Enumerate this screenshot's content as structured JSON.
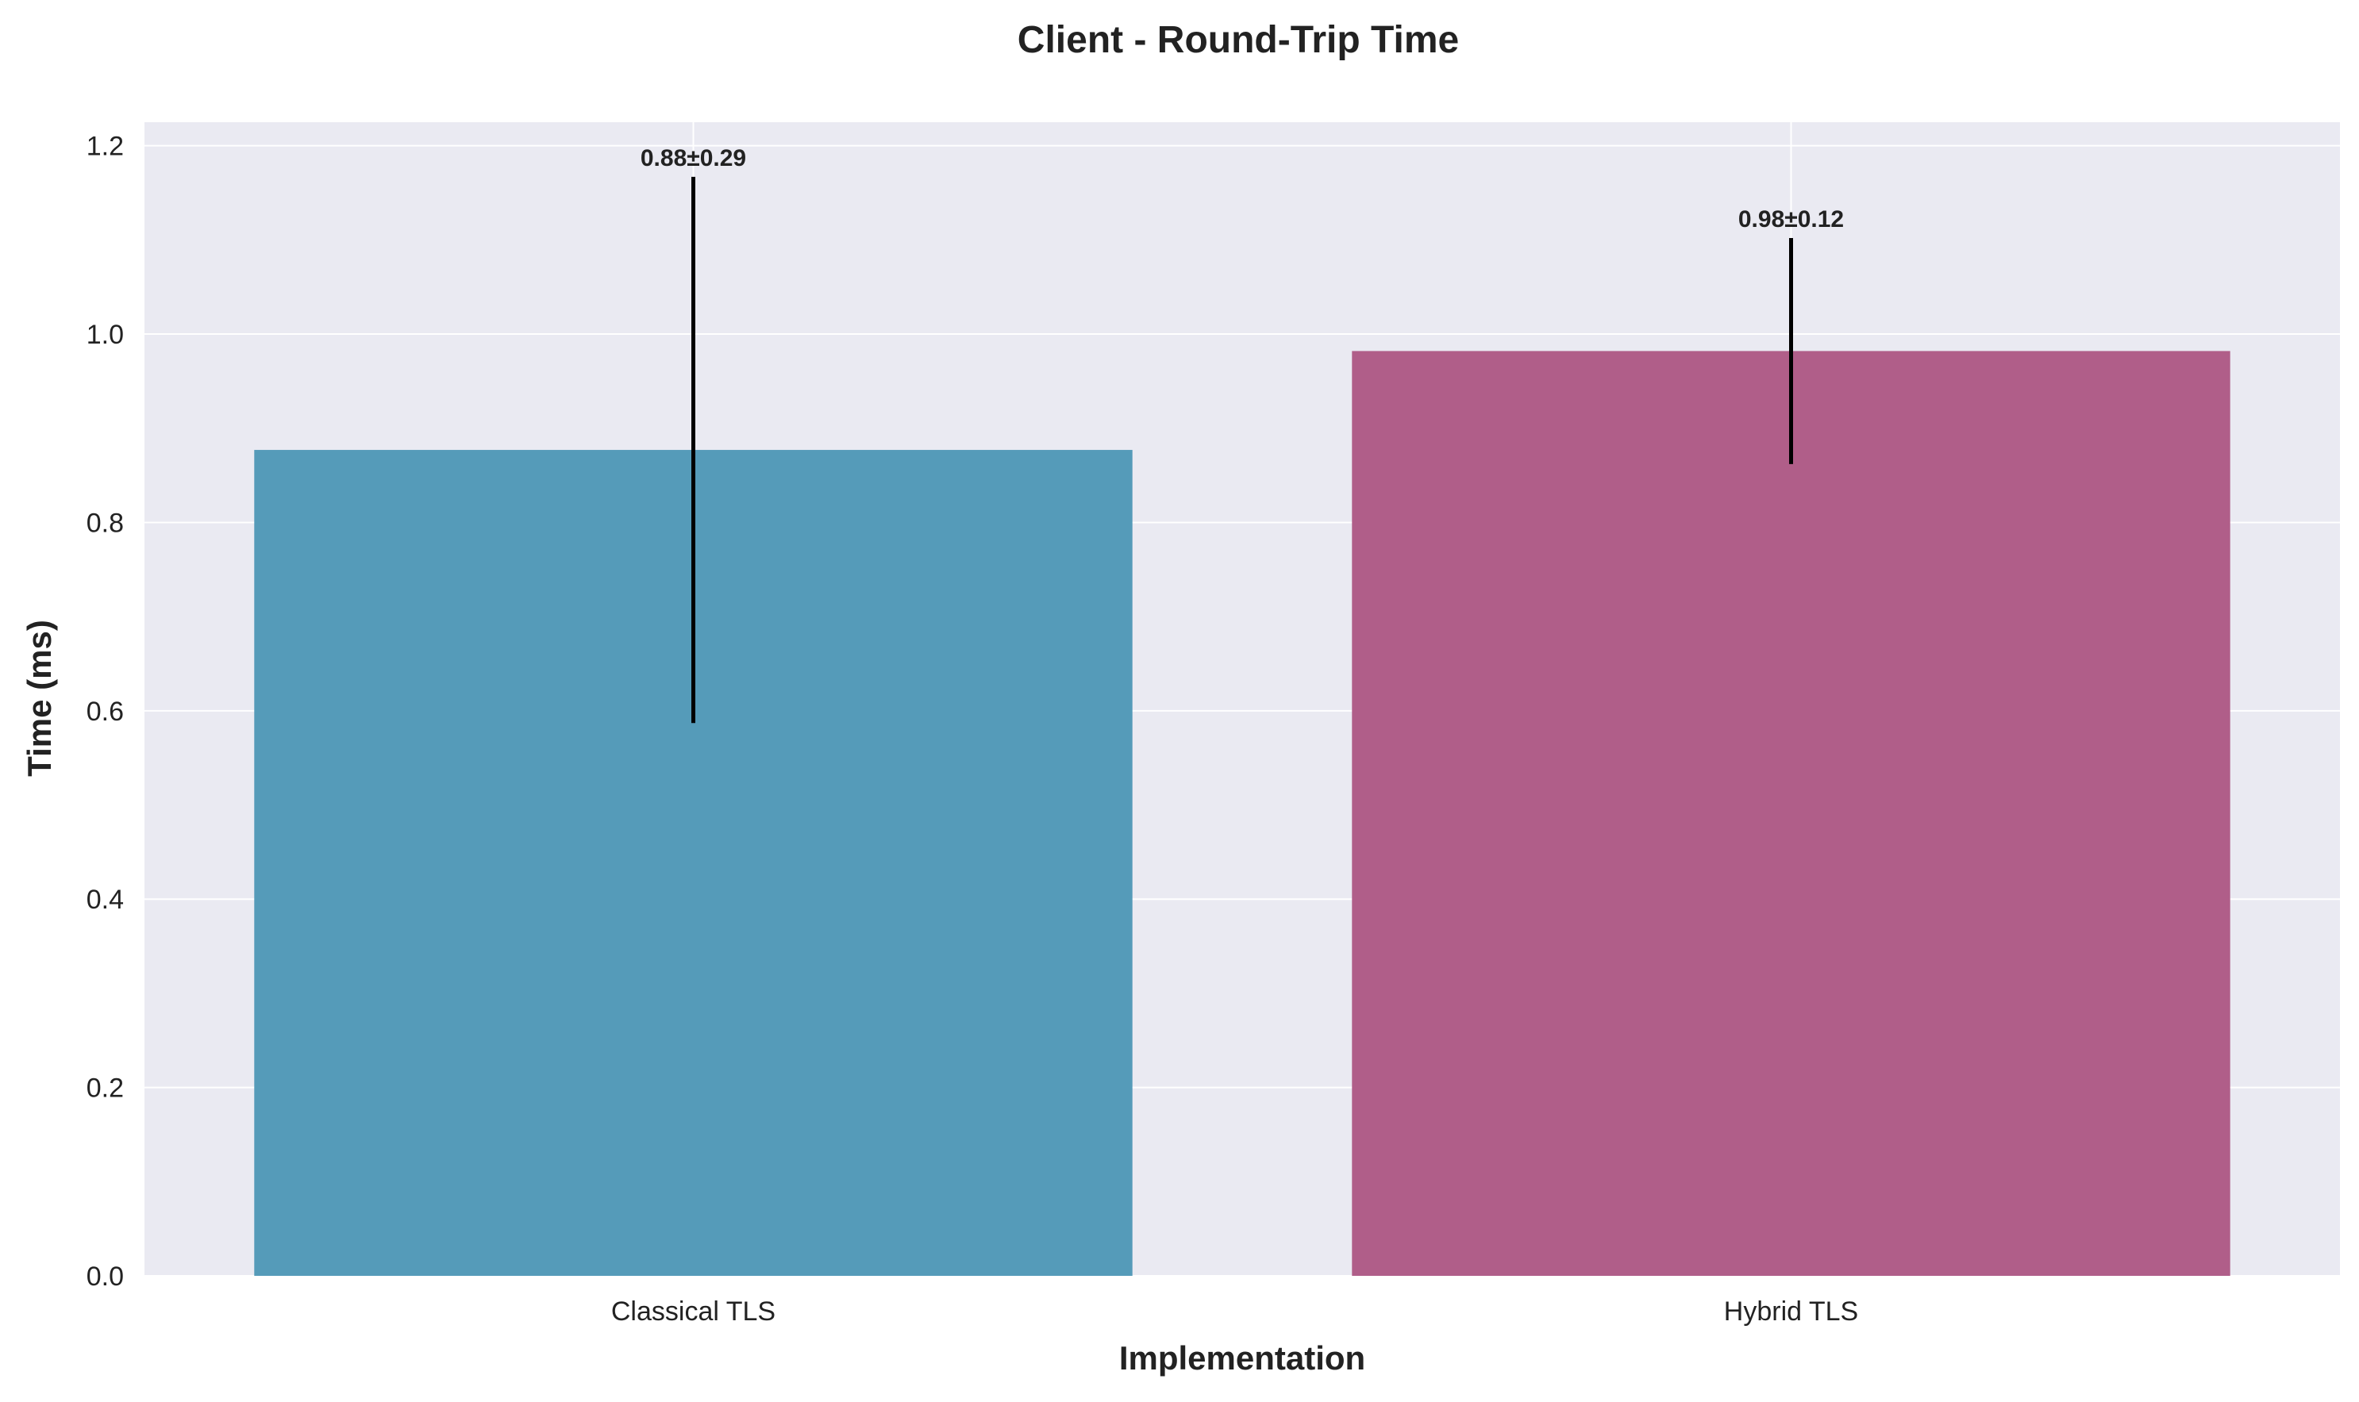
{
  "chart_data": {
    "type": "bar",
    "title": "Client - Round-Trip Time",
    "xlabel": "Implementation",
    "ylabel": "Time (ms)",
    "categories": [
      "Classical TLS",
      "Hybrid TLS"
    ],
    "values": [
      0.877,
      0.982
    ],
    "errors": [
      0.29,
      0.12
    ],
    "data_labels": [
      "0.88±0.29",
      "0.98±0.12"
    ],
    "colors": [
      "#559BB9",
      "#B05E89"
    ],
    "ylim": [
      0,
      1.225
    ],
    "yticks": [
      0.0,
      0.2,
      0.4,
      0.6,
      0.8,
      1.0,
      1.2
    ],
    "ytick_labels": [
      "0.0",
      "0.2",
      "0.4",
      "0.6",
      "0.8",
      "1.0",
      "1.2"
    ],
    "grid": true,
    "legend": "none",
    "background": "#EAEAF2"
  }
}
